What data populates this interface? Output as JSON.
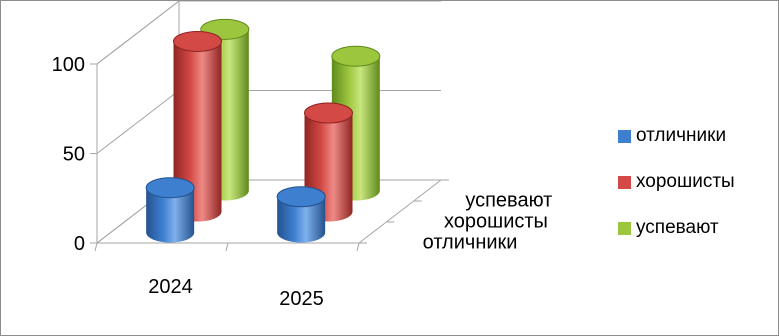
{
  "chart_data": {
    "type": "bar",
    "subtype": "3d-cylinder",
    "categories": [
      "2024",
      "2025"
    ],
    "depth_labels": [
      "отличники",
      "хорошисты",
      "успевают"
    ],
    "series": [
      {
        "name": "отличники",
        "color": "#3f7fd0",
        "dark": "#24528e",
        "light": "#7fb0ec",
        "values": [
          25,
          20
        ]
      },
      {
        "name": "хорошисты",
        "color": "#d34945",
        "dark": "#8f2522",
        "light": "#ee8a86",
        "values": [
          95,
          55
        ]
      },
      {
        "name": "успевают",
        "color": "#9cc63d",
        "dark": "#5f8a1c",
        "light": "#c8e77e",
        "values": [
          90,
          75
        ]
      }
    ],
    "yticks": [
      "0",
      "50",
      "100"
    ],
    "ylim": [
      0,
      100
    ],
    "legend_position": "right",
    "grid": true
  }
}
